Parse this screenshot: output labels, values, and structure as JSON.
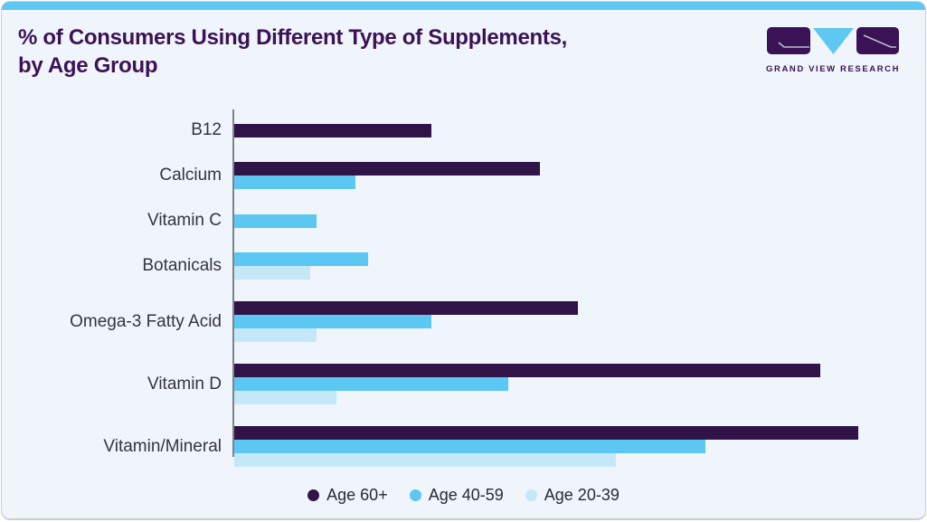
{
  "header": {
    "title_line1": "% of Consumers Using Different Type of Supplements,",
    "title_line2": "by Age Group",
    "logo_text": "GRAND VIEW RESEARCH"
  },
  "colors": {
    "card_background": "#eff5fa",
    "accent_strip": "#5ec7f2",
    "title_purple": "#3c1256",
    "bar_dark_purple": "#301448",
    "bar_mid_blue": "#5bc7f2",
    "bar_light_blue": "#c5e8f8",
    "axis_gray": "#7d838b"
  },
  "chart_data": {
    "type": "bar",
    "orientation": "horizontal",
    "title": "% of Consumers Using Different Type of Supplements, by Age Group",
    "xlabel": "",
    "ylabel": "",
    "unit": "%",
    "xlim": [
      0,
      105
    ],
    "x_axis_labels_shown": false,
    "grid": false,
    "legend_position": "bottom",
    "categories": [
      "B12",
      "Calcium",
      "Vitamin C",
      "Botanicals",
      "Omega-3 Fatty Acid",
      "Vitamin D",
      "Vitamin/Mineral"
    ],
    "series": [
      {
        "name": "Age 60+",
        "color": "#301448",
        "values": [
          31,
          48,
          null,
          null,
          54,
          92,
          98
        ]
      },
      {
        "name": "Age 40-59",
        "color": "#5bc7f2",
        "values": [
          null,
          19,
          13,
          21,
          31,
          43,
          74
        ]
      },
      {
        "name": "Age 20-39",
        "color": "#c5e8f8",
        "values": [
          null,
          null,
          null,
          12,
          13,
          16,
          60
        ]
      }
    ]
  }
}
